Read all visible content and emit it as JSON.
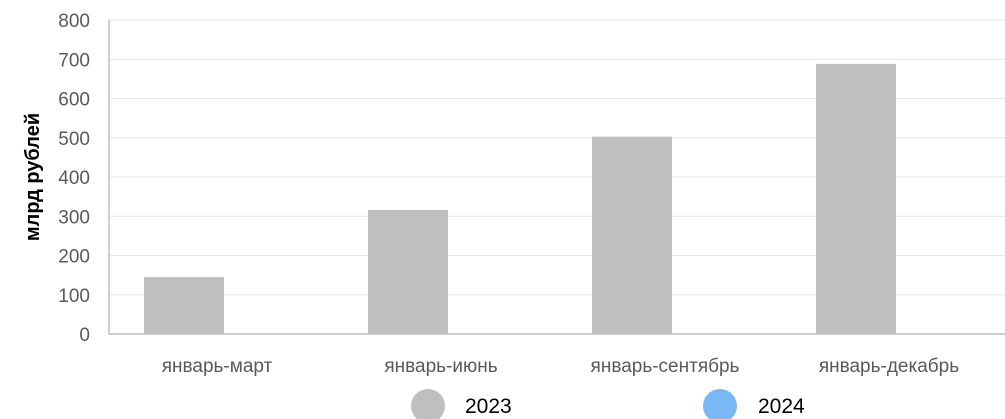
{
  "chart_data": {
    "type": "bar",
    "categories": [
      "январь-март",
      "январь-июнь",
      "январь-сентябрь",
      "январь-декабрь"
    ],
    "series": [
      {
        "name": "2023",
        "values": [
          145,
          316,
          503,
          688
        ],
        "color": "#bfbfbf"
      },
      {
        "name": "2024",
        "values": [
          null,
          null,
          null,
          null
        ],
        "color": "#7ab8f5"
      }
    ],
    "title": "",
    "xlabel": "",
    "ylabel": "млрд рублей",
    "ylim": [
      0,
      800
    ],
    "yticks": [
      "0",
      "100",
      "200",
      "300",
      "400",
      "500",
      "600",
      "700",
      "800"
    ],
    "grid": true,
    "legend": "bottom"
  }
}
